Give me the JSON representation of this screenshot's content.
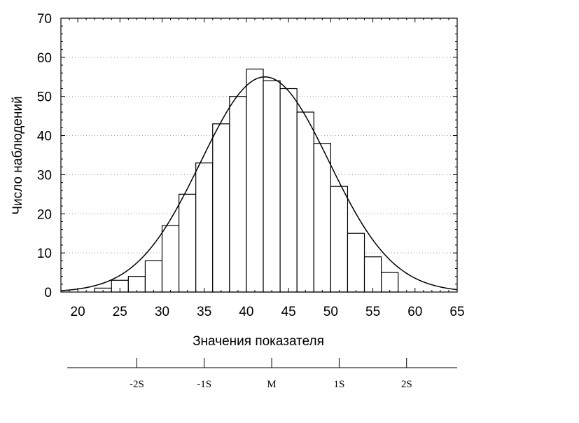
{
  "chart_data": {
    "type": "bar",
    "title": "",
    "xlabel": "Значения показателя",
    "ylabel": "Число наблюдений",
    "xlim": [
      18,
      65
    ],
    "ylim": [
      0,
      70
    ],
    "x_ticks": [
      20,
      25,
      30,
      35,
      40,
      45,
      50,
      55,
      60,
      65
    ],
    "y_ticks": [
      0,
      10,
      20,
      30,
      40,
      50,
      60,
      70
    ],
    "grid": true,
    "bin_width": 2,
    "bins": [
      {
        "x0": 22,
        "value": 1
      },
      {
        "x0": 24,
        "value": 3
      },
      {
        "x0": 26,
        "value": 4
      },
      {
        "x0": 28,
        "value": 8
      },
      {
        "x0": 30,
        "value": 17
      },
      {
        "x0": 32,
        "value": 25
      },
      {
        "x0": 34,
        "value": 33
      },
      {
        "x0": 36,
        "value": 43
      },
      {
        "x0": 38,
        "value": 50
      },
      {
        "x0": 40,
        "value": 57
      },
      {
        "x0": 42,
        "value": 54
      },
      {
        "x0": 44,
        "value": 52
      },
      {
        "x0": 46,
        "value": 46
      },
      {
        "x0": 48,
        "value": 38
      },
      {
        "x0": 50,
        "value": 27
      },
      {
        "x0": 52,
        "value": 15
      },
      {
        "x0": 54,
        "value": 9
      },
      {
        "x0": 56,
        "value": 5
      }
    ],
    "normal_curve": {
      "mean": 42.2,
      "sd": 7.6,
      "peak": 55
    },
    "sigma_axis": {
      "ticks": [
        {
          "label": "-2S",
          "x": 27
        },
        {
          "label": "-1S",
          "x": 35
        },
        {
          "label": "M",
          "x": 43
        },
        {
          "label": "1S",
          "x": 51
        },
        {
          "label": "2S",
          "x": 59
        }
      ]
    }
  }
}
